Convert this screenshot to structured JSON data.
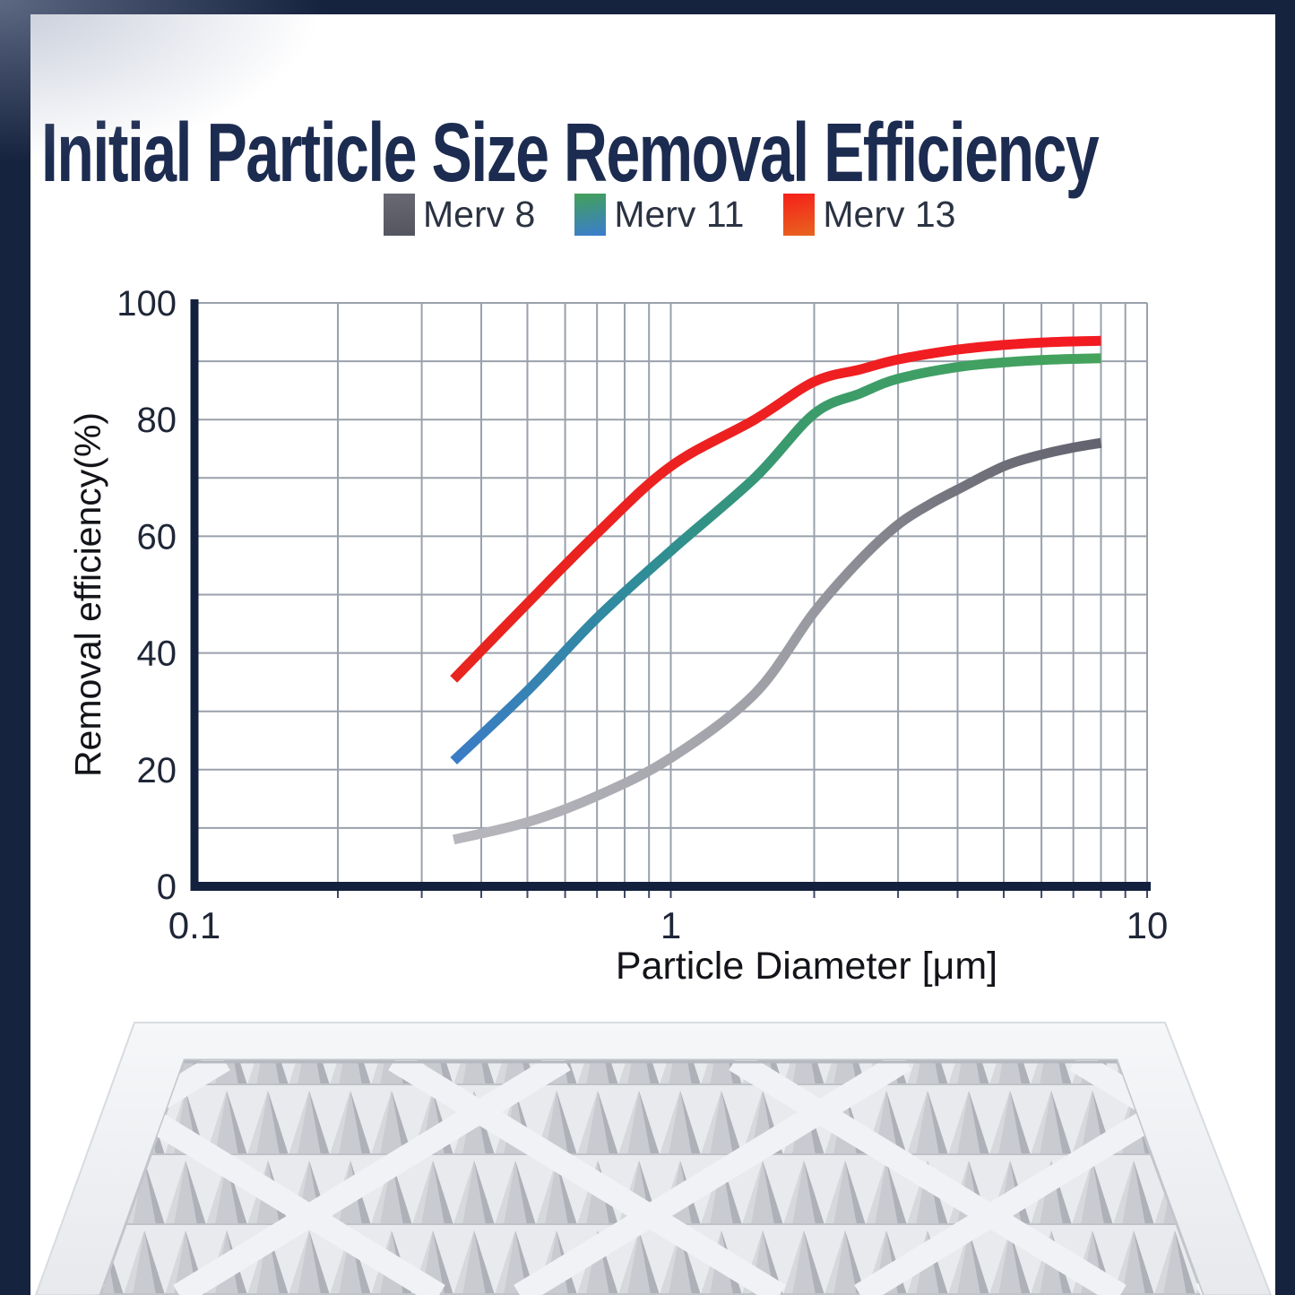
{
  "page": {
    "title": "Initial Particle Size Removal Efficiency"
  },
  "legend": [
    {
      "label": "Merv 8",
      "swatch_colors": [
        "#6a6a75",
        "#54545f"
      ]
    },
    {
      "label": "Merv 11",
      "swatch_colors": [
        "#42a158",
        "#3b7cd0"
      ]
    },
    {
      "label": "Merv 13",
      "swatch_colors": [
        "#f5201a",
        "#e8641e"
      ]
    }
  ],
  "chart_data": {
    "type": "line",
    "title": "Initial Particle Size Removal Efficiency",
    "xlabel": "Particle Diameter [μm]",
    "ylabel": "Removal efficiency(%)",
    "x_scale": "log",
    "xlim": [
      0.1,
      10
    ],
    "ylim": [
      0,
      100
    ],
    "x_ticks": [
      0.1,
      1,
      10
    ],
    "x_tick_labels": [
      "0.1",
      "1",
      "10"
    ],
    "y_ticks": [
      0,
      20,
      40,
      60,
      80,
      100
    ],
    "y_grid_step": 10,
    "grid": true,
    "legend_position": "top",
    "colors": {
      "axis": "#13203e",
      "grid": "#9aa1ac",
      "tick_text": "#1e2637",
      "label_text": "#131419"
    },
    "series": [
      {
        "name": "Merv 8",
        "gradient": [
          {
            "offset": 0,
            "color": "#b7b7bd"
          },
          {
            "offset": 0.55,
            "color": "#9a9aa2"
          },
          {
            "offset": 0.8,
            "color": "#74747e"
          },
          {
            "offset": 1,
            "color": "#636370"
          }
        ],
        "x": [
          0.35,
          0.5,
          0.7,
          1,
          1.5,
          2,
          2.5,
          3,
          3.5,
          4,
          5,
          6,
          7,
          8
        ],
        "y": [
          8,
          11,
          15.5,
          22,
          33,
          47,
          56,
          62,
          65.5,
          68,
          72,
          74,
          75.2,
          76
        ]
      },
      {
        "name": "Merv 11",
        "gradient": [
          {
            "offset": 0,
            "color": "#3b7cc6"
          },
          {
            "offset": 0.35,
            "color": "#2f8d96"
          },
          {
            "offset": 0.6,
            "color": "#3a9a6c"
          },
          {
            "offset": 1,
            "color": "#45a35c"
          }
        ],
        "x": [
          0.35,
          0.5,
          0.7,
          1,
          1.5,
          2,
          2.5,
          3,
          4,
          5,
          6,
          7,
          8
        ],
        "y": [
          21.5,
          33.5,
          46,
          57.5,
          70,
          81,
          84.5,
          87,
          89,
          89.8,
          90.2,
          90.4,
          90.5
        ]
      },
      {
        "name": "Merv 13",
        "gradient": [
          {
            "offset": 0,
            "color": "#e8251f"
          },
          {
            "offset": 1,
            "color": "#f21b22"
          }
        ],
        "x": [
          0.35,
          0.5,
          0.7,
          1,
          1.5,
          2,
          2.5,
          3,
          4,
          5,
          6,
          7,
          8
        ],
        "y": [
          35.5,
          48.5,
          60.5,
          72,
          80,
          86.5,
          88.6,
          90.3,
          92,
          92.8,
          93.2,
          93.4,
          93.5
        ]
      }
    ]
  }
}
